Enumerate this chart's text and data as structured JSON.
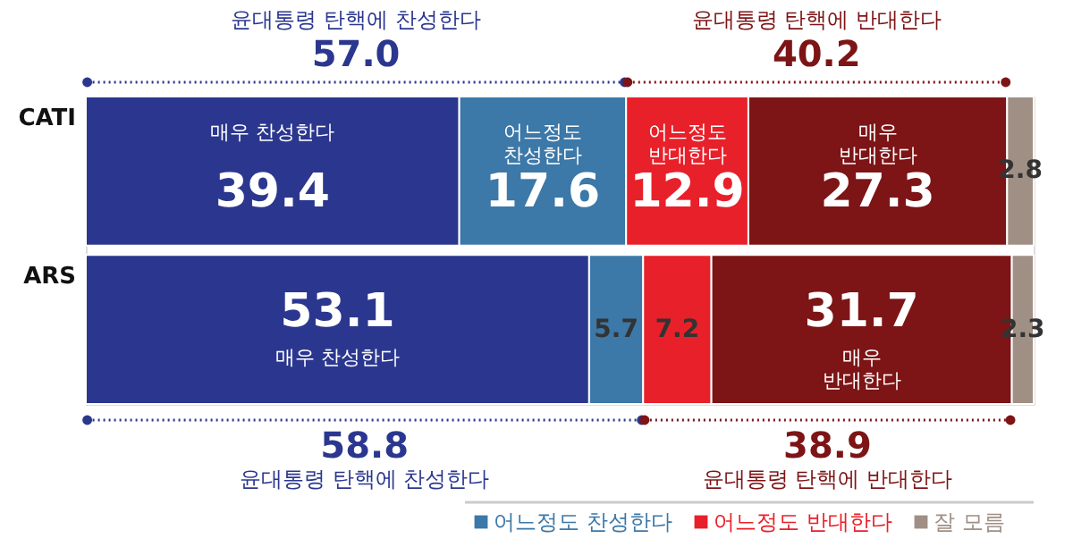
{
  "chart_data": {
    "type": "bar",
    "orientation": "horizontal",
    "stacked": true,
    "categories": [
      "CATI",
      "ARS"
    ],
    "series": [
      {
        "name": "매우 찬성한다",
        "color": "#2b378f",
        "values": [
          39.4,
          53.1
        ]
      },
      {
        "name": "어느정도 찬성한다",
        "color": "#3c78a8",
        "values": [
          17.6,
          5.7
        ]
      },
      {
        "name": "어느정도 반대한다",
        "color": "#e8202a",
        "values": [
          12.9,
          7.2
        ]
      },
      {
        "name": "매우 반대한다",
        "color": "#7d1416",
        "values": [
          27.3,
          31.7
        ]
      },
      {
        "name": "잘 모름",
        "color": "#a08f85",
        "values": [
          2.8,
          2.3
        ]
      }
    ],
    "data_labels": true,
    "legend": "bottom right",
    "tick_labels": "y",
    "grid": false,
    "annotations": [
      "윤대통령 탄핵에 찬성한다",
      "57.0",
      "윤대통령 탄핵에 반대한다",
      "40.2",
      "58.8",
      "윤대통령 탄핵에 찬성한다",
      "38.9",
      "윤대통령 탄핵에 반대한다"
    ]
  }
}
